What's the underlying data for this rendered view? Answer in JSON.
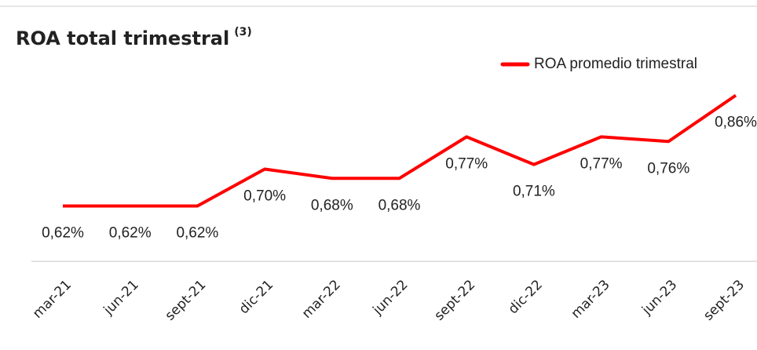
{
  "chart_data": {
    "type": "line",
    "title": "ROA total trimestral",
    "title_note": "(3)",
    "categories": [
      "mar-21",
      "jun-21",
      "sept-21",
      "dic-21",
      "mar-22",
      "jun-22",
      "sept-22",
      "dic-22",
      "mar-23",
      "jun-23",
      "sept-23"
    ],
    "series": [
      {
        "name": "ROA promedio trimestral",
        "color": "#ff0000",
        "values": [
          0.62,
          0.62,
          0.62,
          0.7,
          0.68,
          0.68,
          0.77,
          0.71,
          0.77,
          0.76,
          0.86
        ],
        "value_labels": [
          "0,62%",
          "0,62%",
          "0,62%",
          "0,70%",
          "0,68%",
          "0,68%",
          "0,77%",
          "0,71%",
          "0,77%",
          "0,76%",
          "0,86%"
        ]
      }
    ],
    "ylim": [
      0.5,
      0.9
    ],
    "legend": "top-right"
  }
}
